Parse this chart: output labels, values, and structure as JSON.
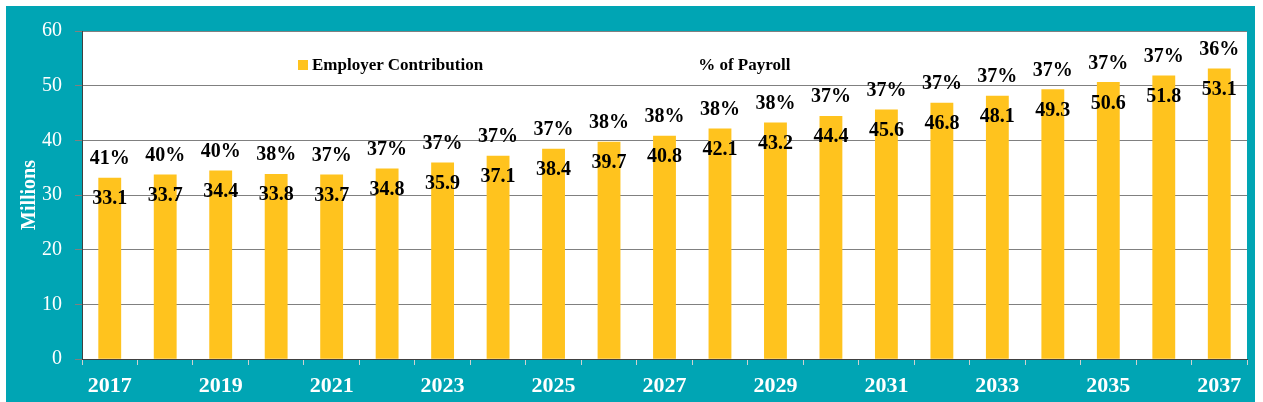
{
  "chart_data": {
    "type": "bar",
    "x": [
      2017,
      2018,
      2019,
      2020,
      2021,
      2022,
      2023,
      2024,
      2025,
      2026,
      2027,
      2028,
      2029,
      2030,
      2031,
      2032,
      2033,
      2034,
      2035,
      2036,
      2037
    ],
    "series": [
      {
        "name": "Employer Contribution",
        "color": "#ffc31e",
        "values": [
          33.1,
          33.7,
          34.4,
          33.8,
          33.7,
          34.8,
          35.9,
          37.1,
          38.4,
          39.7,
          40.8,
          42.1,
          43.2,
          44.4,
          45.6,
          46.8,
          48.1,
          49.3,
          50.6,
          51.8,
          53.1
        ]
      }
    ],
    "xlim": [
      2016.5,
      2037.5
    ],
    "xticks": [
      {
        "value": 2016.5,
        "label": null
      },
      2017,
      {
        "value": 2017.5,
        "label": null
      },
      {
        "value": 2018.5,
        "label": null
      },
      2019,
      {
        "value": 2019.5,
        "label": null
      },
      {
        "value": 2020.5,
        "label": null
      },
      2021,
      {
        "value": 2021.5,
        "label": null
      },
      {
        "value": 2022.5,
        "label": null
      },
      2023,
      {
        "value": 2023.5,
        "label": null
      },
      {
        "value": 2024.5,
        "label": null
      },
      2025,
      {
        "value": 2025.5,
        "label": null
      },
      {
        "value": 2026.5,
        "label": null
      },
      2027,
      {
        "value": 2027.5,
        "label": null
      },
      {
        "value": 2028.5,
        "label": null
      },
      2029,
      {
        "value": 2029.5,
        "label": null
      },
      {
        "value": 2030.5,
        "label": null
      },
      2031,
      {
        "value": 2031.5,
        "label": null
      },
      {
        "value": 2032.5,
        "label": null
      },
      2033,
      {
        "value": 2033.5,
        "label": null
      },
      {
        "value": 2034.5,
        "label": null
      },
      2035,
      {
        "value": 2035.5,
        "label": null
      },
      {
        "value": 2036.5,
        "label": null
      },
      2037,
      {
        "value": 2037.5,
        "label": null
      }
    ],
    "ylabel": "Millions",
    "ylim": [
      0,
      60
    ],
    "yticks": [
      0,
      10,
      20,
      30,
      40,
      50,
      60
    ],
    "grid": "y",
    "legend": "top",
    "data_labels": true,
    "annotations": [
      "% of Payroll",
      {
        "text": "41%",
        "x": 2017,
        "y": 33.1
      },
      {
        "text": "40%",
        "x": 2018,
        "y": 33.7
      },
      {
        "text": "40%",
        "x": 2019,
        "y": 34.4
      },
      {
        "text": "38%",
        "x": 2020,
        "y": 33.8
      },
      {
        "text": "37%",
        "x": 2021,
        "y": 33.7
      },
      {
        "text": "37%",
        "x": 2022,
        "y": 34.8
      },
      {
        "text": "37%",
        "x": 2023,
        "y": 35.9
      },
      {
        "text": "37%",
        "x": 2024,
        "y": 37.1
      },
      {
        "text": "37%",
        "x": 2025,
        "y": 38.4
      },
      {
        "text": "38%",
        "x": 2026,
        "y": 39.7
      },
      {
        "text": "38%",
        "x": 2027,
        "y": 40.8
      },
      {
        "text": "38%",
        "x": 2028,
        "y": 42.1
      },
      {
        "text": "38%",
        "x": 2029,
        "y": 43.2
      },
      {
        "text": "37%",
        "x": 2030,
        "y": 44.4
      },
      {
        "text": "37%",
        "x": 2031,
        "y": 45.6
      },
      {
        "text": "37%",
        "x": 2032,
        "y": 46.8
      },
      {
        "text": "37%",
        "x": 2033,
        "y": 48.1
      },
      {
        "text": "37%",
        "x": 2034,
        "y": 49.3
      },
      {
        "text": "37%",
        "x": 2035,
        "y": 50.6
      },
      {
        "text": "37%",
        "x": 2036,
        "y": 51.8
      },
      {
        "text": "36%",
        "x": 2037,
        "y": 53.1
      }
    ]
  }
}
